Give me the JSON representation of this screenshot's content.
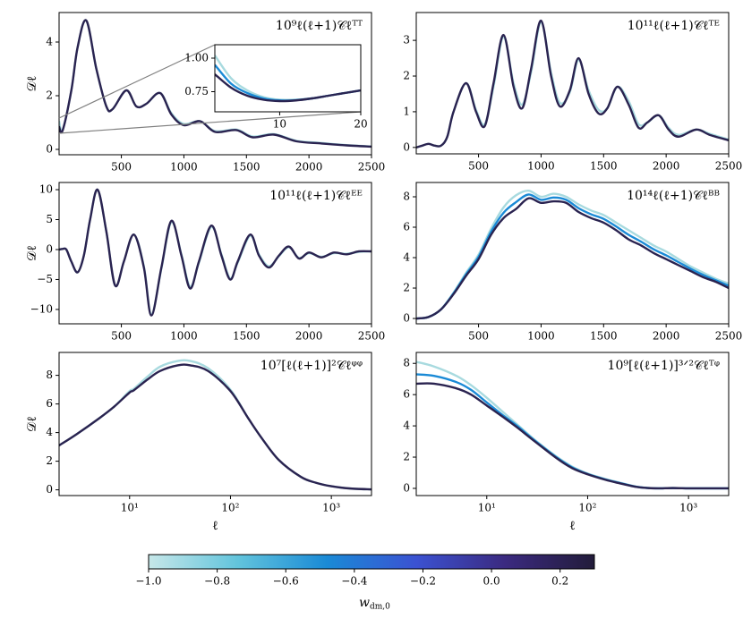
{
  "chart_data": [
    {
      "type": "line",
      "label": "10⁹ℓ(ℓ+1)𝒞ℓᵀᵀ",
      "ylabel": "𝒟ℓ",
      "x": [
        2,
        30,
        100,
        150,
        220,
        300,
        380,
        430,
        540,
        620,
        700,
        810,
        900,
        1000,
        1130,
        1250,
        1420,
        1550,
        1720,
        1900,
        2100,
        2300,
        2500
      ],
      "series": [
        {
          "color": "#a8dadf",
          "values": [
            1.05,
            0.72,
            2.2,
            3.8,
            4.8,
            3.0,
            1.6,
            1.5,
            2.2,
            1.6,
            1.7,
            2.1,
            1.35,
            0.95,
            1.05,
            0.68,
            0.74,
            0.48,
            0.57,
            0.32,
            0.24,
            0.16,
            0.11
          ]
        },
        {
          "color": "#2a2350",
          "values": [
            0.85,
            0.7,
            2.2,
            3.8,
            4.8,
            3.0,
            1.6,
            1.5,
            2.2,
            1.6,
            1.7,
            2.1,
            1.3,
            0.9,
            1.05,
            0.65,
            0.72,
            0.45,
            0.55,
            0.3,
            0.22,
            0.15,
            0.1
          ]
        }
      ],
      "xlim": [
        2,
        2500
      ],
      "xticks": [
        500,
        1000,
        1500,
        2000,
        2500
      ],
      "ylim": [
        -0.2,
        5.1
      ],
      "yticks": [
        0,
        2,
        4
      ]
    },
    {
      "type": "line",
      "label": "10¹¹ℓ(ℓ+1)𝒞ℓᵀᴱ",
      "x": [
        2,
        50,
        100,
        150,
        200,
        250,
        300,
        400,
        480,
        550,
        620,
        700,
        780,
        850,
        920,
        1000,
        1080,
        1150,
        1230,
        1300,
        1380,
        1460,
        1530,
        1610,
        1700,
        1780,
        1850,
        1940,
        2020,
        2100,
        2240,
        2350,
        2500
      ],
      "series": [
        {
          "color": "#a8dadf",
          "values": [
            0,
            0.05,
            0.1,
            0.05,
            0.05,
            0.3,
            1.0,
            1.8,
            1.05,
            0.65,
            1.7,
            3.1,
            1.8,
            1.2,
            2.1,
            3.5,
            2.1,
            1.25,
            1.55,
            2.45,
            1.6,
            1.05,
            1.1,
            1.7,
            1.3,
            0.65,
            0.7,
            0.9,
            0.55,
            0.35,
            0.5,
            0.38,
            0.22
          ]
        },
        {
          "color": "#2a2350",
          "values": [
            0,
            0.05,
            0.1,
            0.05,
            0.05,
            0.3,
            1.0,
            1.8,
            1.0,
            0.6,
            1.8,
            3.15,
            1.7,
            1.1,
            2.2,
            3.55,
            2.0,
            1.15,
            1.6,
            2.5,
            1.5,
            0.95,
            1.1,
            1.7,
            1.2,
            0.55,
            0.7,
            0.9,
            0.5,
            0.3,
            0.5,
            0.35,
            0.2
          ]
        }
      ],
      "xlim": [
        2,
        2500
      ],
      "xticks": [
        500,
        1000,
        1500,
        2000,
        2500
      ],
      "ylim": [
        -0.18,
        3.78
      ],
      "yticks": [
        0,
        1,
        2,
        3
      ]
    },
    {
      "type": "line",
      "label": "10¹¹ℓ(ℓ+1)𝒞ℓᴱᴱ",
      "ylabel": "𝒟ℓ",
      "x": [
        2,
        30,
        60,
        100,
        150,
        200,
        250,
        310,
        380,
        450,
        520,
        600,
        680,
        740,
        820,
        900,
        980,
        1050,
        1120,
        1220,
        1300,
        1370,
        1430,
        1530,
        1600,
        1680,
        1760,
        1840,
        1920,
        2000,
        2100,
        2200,
        2300,
        2400,
        2500
      ],
      "series": [
        {
          "color": "#a8dadf",
          "values": [
            0,
            0.1,
            0,
            -2,
            -3.8,
            -1,
            5,
            10,
            3,
            -6,
            -2,
            2.5,
            -2.8,
            -10.8,
            -3.2,
            4.6,
            -0.8,
            -6.2,
            -2.2,
            3.8,
            -0.8,
            -4.8,
            -2.2,
            2.3,
            -0.8,
            -2.8,
            -1.1,
            0.4,
            -1.4,
            -0.6,
            -1.2,
            -0.6,
            -0.7,
            -0.4,
            -0.3
          ]
        },
        {
          "color": "#2a2350",
          "values": [
            0,
            0.1,
            0,
            -2,
            -3.8,
            -1,
            5,
            10,
            3,
            -6,
            -2,
            2.5,
            -3,
            -11,
            -3,
            4.8,
            -1,
            -6.5,
            -2,
            4,
            -1,
            -5,
            -2,
            2.5,
            -1,
            -3,
            -1,
            0.5,
            -1.5,
            -0.5,
            -1.3,
            -0.5,
            -0.8,
            -0.3,
            -0.3
          ]
        }
      ],
      "xlim": [
        2,
        2500
      ],
      "xticks": [
        500,
        1000,
        1500,
        2000,
        2500
      ],
      "ylim": [
        -12.4,
        11.2
      ],
      "yticks": [
        {
          "value": -10,
          "label": "−10"
        },
        {
          "value": -5,
          "label": "−5"
        },
        0,
        5,
        10
      ]
    },
    {
      "type": "line",
      "label": "10¹⁴ℓ(ℓ+1)𝒞ℓᴮᴮ",
      "x": [
        2,
        100,
        200,
        300,
        400,
        500,
        600,
        700,
        800,
        900,
        1000,
        1100,
        1200,
        1300,
        1400,
        1500,
        1600,
        1700,
        1800,
        1900,
        2000,
        2100,
        2200,
        2300,
        2400,
        2500
      ],
      "series": [
        {
          "color": "#a8dadf",
          "values": [
            0,
            0.1,
            0.6,
            1.7,
            3.0,
            4.2,
            5.9,
            7.3,
            8.1,
            8.4,
            8.0,
            8.2,
            8.0,
            7.5,
            7.1,
            6.8,
            6.3,
            5.8,
            5.3,
            4.8,
            4.4,
            3.9,
            3.4,
            3.0,
            2.6,
            2.3
          ]
        },
        {
          "color": "#1a8ad6",
          "values": [
            0,
            0.1,
            0.6,
            1.65,
            2.9,
            4.05,
            5.7,
            6.95,
            7.65,
            8.15,
            7.8,
            7.95,
            7.8,
            7.25,
            6.85,
            6.55,
            6.05,
            5.5,
            5.05,
            4.55,
            4.15,
            3.7,
            3.25,
            2.85,
            2.5,
            2.15
          ]
        },
        {
          "color": "#2a2350",
          "values": [
            0,
            0.1,
            0.6,
            1.6,
            2.8,
            3.9,
            5.5,
            6.6,
            7.2,
            7.9,
            7.6,
            7.7,
            7.6,
            7.0,
            6.6,
            6.3,
            5.8,
            5.2,
            4.8,
            4.3,
            3.9,
            3.5,
            3.1,
            2.7,
            2.4,
            2.0
          ]
        }
      ],
      "xlim": [
        2,
        2500
      ],
      "xticks": [
        500,
        1000,
        1500,
        2000,
        2500
      ],
      "ylim": [
        -0.35,
        8.94
      ],
      "yticks": [
        0,
        2,
        4,
        6,
        8
      ]
    },
    {
      "type": "line",
      "label": "10⁷[ℓ(ℓ+1)]²𝒞ℓᵠᵠ",
      "ylabel": "𝒟ℓ",
      "xlabel": "ℓ",
      "log_x": true,
      "x": [
        2,
        3,
        5,
        7,
        10,
        11,
        15,
        20,
        30,
        40,
        60,
        100,
        150,
        200,
        300,
        500,
        700,
        1000,
        1500,
        2500
      ],
      "series": [
        {
          "color": "#a8dadf",
          "values": [
            3.1,
            3.9,
            5.0,
            5.8,
            6.9,
            7.05,
            7.9,
            8.6,
            9.0,
            9.0,
            8.5,
            7.0,
            5.0,
            3.7,
            2.1,
            0.9,
            0.5,
            0.25,
            0.1,
            0.03
          ]
        },
        {
          "color": "#2a2350",
          "values": [
            3.1,
            3.9,
            5.0,
            5.8,
            6.8,
            6.95,
            7.7,
            8.3,
            8.7,
            8.7,
            8.3,
            6.9,
            5.0,
            3.7,
            2.1,
            0.9,
            0.5,
            0.25,
            0.1,
            0.03
          ]
        }
      ],
      "xlim": [
        2,
        2500
      ],
      "xticks": [
        {
          "value": 10,
          "label": "10¹"
        },
        {
          "value": 100,
          "label": "10²"
        },
        {
          "value": 1000,
          "label": "10³"
        }
      ],
      "ylim": [
        -0.4,
        9.6
      ],
      "yticks": [
        0,
        2,
        4,
        6,
        8
      ]
    },
    {
      "type": "line",
      "label": "10⁹[ℓ(ℓ+1)]³ᐟ²𝒞ℓᵀᵠ",
      "xlabel": "ℓ",
      "log_x": true,
      "x": [
        2,
        3,
        5,
        7,
        10,
        15,
        20,
        30,
        50,
        70,
        100,
        150,
        200,
        300,
        400,
        500,
        700,
        1000,
        1500,
        2500
      ],
      "series": [
        {
          "color": "#a8dadf",
          "values": [
            8.1,
            7.8,
            7.2,
            6.6,
            5.8,
            4.8,
            4.1,
            3.1,
            2.0,
            1.4,
            0.95,
            0.6,
            0.4,
            0.12,
            0.03,
            0,
            0.02,
            0,
            0,
            0
          ]
        },
        {
          "color": "#1a8ad6",
          "values": [
            7.3,
            7.2,
            6.8,
            6.3,
            5.5,
            4.6,
            4.0,
            3.05,
            1.95,
            1.35,
            0.92,
            0.57,
            0.37,
            0.11,
            0.02,
            0,
            0.02,
            0,
            0,
            0
          ]
        },
        {
          "color": "#2a2350",
          "values": [
            6.7,
            6.7,
            6.4,
            6.0,
            5.3,
            4.5,
            3.9,
            3.0,
            1.9,
            1.3,
            0.9,
            0.55,
            0.35,
            0.1,
            0.02,
            0,
            0.02,
            0,
            0,
            0
          ]
        }
      ],
      "xlim": [
        2,
        2500
      ],
      "xticks": [
        {
          "value": 10,
          "label": "10¹"
        },
        {
          "value": 100,
          "label": "10²"
        },
        {
          "value": 1000,
          "label": "10³"
        }
      ],
      "ylim": [
        -0.46,
        8.7
      ],
      "yticks": [
        0,
        2,
        4,
        6,
        8
      ]
    },
    {
      "type": "line",
      "x": [
        2,
        4,
        6,
        8,
        10,
        12,
        14,
        16,
        18,
        20
      ],
      "series": [
        {
          "color": "#a8dadf",
          "values": [
            1.02,
            0.85,
            0.76,
            0.71,
            0.69,
            0.69,
            0.7,
            0.72,
            0.74,
            0.76
          ]
        },
        {
          "color": "#1a8ad6",
          "values": [
            0.95,
            0.81,
            0.74,
            0.7,
            0.685,
            0.687,
            0.7,
            0.72,
            0.74,
            0.76
          ]
        },
        {
          "color": "#2a2350",
          "values": [
            0.88,
            0.78,
            0.72,
            0.69,
            0.68,
            0.685,
            0.7,
            0.72,
            0.74,
            0.76
          ]
        }
      ],
      "xlim": [
        2,
        20
      ],
      "xticks": [
        10,
        20
      ],
      "ylim": [
        0.6,
        1.1
      ],
      "yticks": [
        0.75,
        {
          "value": 1,
          "label": "1.00"
        }
      ]
    },
    {
      "type": "colorbar",
      "label": "w",
      "label_sub": "dm,0",
      "colors": [
        "#c6e7e9",
        "#62c4dc",
        "#1a8ad6",
        "#3b52d2",
        "#3b2a80",
        "#221c3a"
      ],
      "xlim": [
        -1,
        0.3
      ],
      "xticks": [
        {
          "value": -1,
          "label": "−1.0"
        },
        {
          "value": -0.8,
          "label": "−0.8"
        },
        {
          "value": -0.6,
          "label": "−0.6"
        },
        {
          "value": -0.4,
          "label": "−0.4"
        },
        {
          "value": -0.2,
          "label": "−0.2"
        },
        {
          "value": 0,
          "label": "0.0"
        },
        0.2
      ]
    }
  ]
}
